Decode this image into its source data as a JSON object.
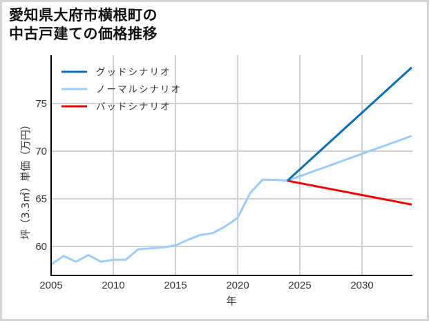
{
  "title": {
    "line1": "愛知県大府市横根町の",
    "line2": "中古戸建ての価格推移"
  },
  "axes": {
    "xlabel": "年",
    "ylabel": "坪（3.3㎡）単価（万円）",
    "xticks": [
      "2005",
      "2010",
      "2015",
      "2020",
      "2025",
      "2030"
    ],
    "yticks": [
      "60",
      "65",
      "70",
      "75"
    ]
  },
  "legend": {
    "items": [
      {
        "label": "グッドシナリオ",
        "color": "#0070c0"
      },
      {
        "label": "ノーマルシナリオ",
        "color": "#99ccff"
      },
      {
        "label": "バッドシナリオ",
        "color": "#ff0000"
      }
    ]
  },
  "chart_data": {
    "type": "line",
    "title": "愛知県大府市横根町の中古戸建ての価格推移",
    "xlabel": "年",
    "ylabel": "坪（3.3㎡）単価（万円）",
    "xlim": [
      2005,
      2034
    ],
    "ylim": [
      57,
      79
    ],
    "grid": true,
    "legend_position": "upper left",
    "series": [
      {
        "name": "グッドシナリオ",
        "color": "#0070c0",
        "x": [
          2024,
          2034
        ],
        "values": [
          66.9,
          78.8
        ]
      },
      {
        "name": "ノーマルシナリオ",
        "color": "#99ccff",
        "x": [
          2005,
          2006,
          2007,
          2008,
          2009,
          2010,
          2011,
          2012,
          2013,
          2014,
          2015,
          2016,
          2017,
          2018,
          2019,
          2020,
          2021,
          2022,
          2023,
          2024,
          2034
        ],
        "values": [
          58.1,
          59.0,
          58.4,
          59.1,
          58.4,
          58.6,
          58.6,
          59.7,
          59.8,
          59.9,
          60.1,
          60.7,
          61.2,
          61.4,
          62.1,
          63.0,
          65.6,
          67.0,
          67.0,
          66.9,
          71.6
        ]
      },
      {
        "name": "バッドシナリオ",
        "color": "#ff0000",
        "x": [
          2024,
          2034
        ],
        "values": [
          66.9,
          64.4
        ]
      }
    ]
  }
}
